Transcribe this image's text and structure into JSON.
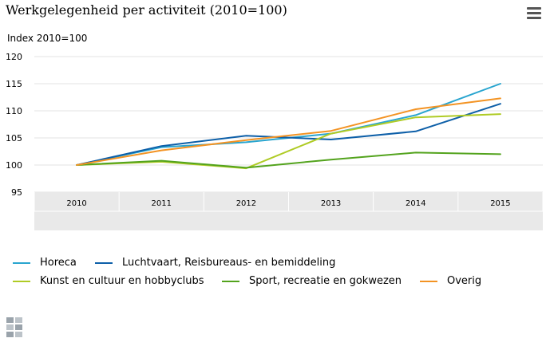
{
  "title": "Werkgelegenheid per activiteit (2010=100)",
  "menu_icon": "hamburger-menu-icon",
  "chart_data": {
    "type": "line",
    "title": "Werkgelegenheid per activiteit (2010=100)",
    "ylabel": "Index 2010=100",
    "xlabel": "",
    "categories": [
      "2010",
      "2011",
      "2012",
      "2013",
      "2014",
      "2015"
    ],
    "ylim": [
      95,
      120
    ],
    "yticks": [
      95,
      100,
      105,
      110,
      115,
      120
    ],
    "grid": true,
    "legend_position": "bottom",
    "series": [
      {
        "name": "Horeca",
        "color": "#29a5cf",
        "values": [
          100,
          103.3,
          104.2,
          105.8,
          109.2,
          115.0
        ]
      },
      {
        "name": "Luchtvaart, Reisbureaus- en bemiddeling",
        "color": "#0d5fa8",
        "values": [
          100,
          103.5,
          105.4,
          104.7,
          106.2,
          111.3
        ]
      },
      {
        "name": "Kunst en cultuur en hobbyclubs",
        "color": "#afcb25",
        "values": [
          100,
          100.6,
          99.4,
          105.8,
          108.8,
          109.4
        ]
      },
      {
        "name": "Sport, recreatie en gokwezen",
        "color": "#53a31d",
        "values": [
          100,
          100.8,
          99.5,
          101.0,
          102.3,
          102.0
        ]
      },
      {
        "name": "Overig",
        "color": "#f39323",
        "values": [
          100,
          102.7,
          104.6,
          106.3,
          110.3,
          112.3
        ]
      }
    ]
  },
  "logo_icon": "cbs-logo-icon"
}
